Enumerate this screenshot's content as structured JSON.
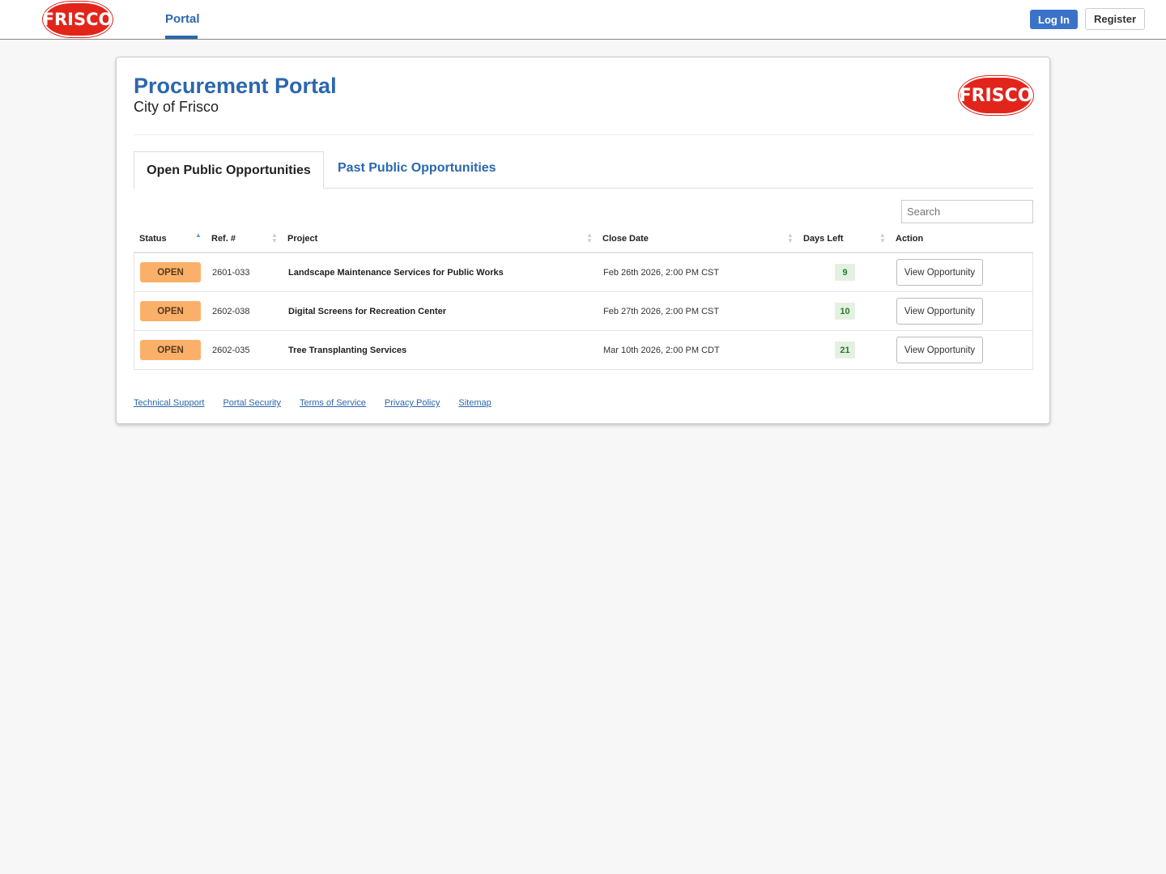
{
  "header": {
    "logo_text": "FRISCO",
    "nav": "Portal",
    "login": "Log In",
    "register": "Register"
  },
  "card": {
    "title": "Procurement Portal",
    "subtitle": "City of Frisco",
    "logo_text": "FRISCO"
  },
  "tabs": [
    {
      "label": "Open Public Opportunities",
      "active": true
    },
    {
      "label": "Past Public Opportunities",
      "active": false
    }
  ],
  "search": {
    "placeholder": "Search",
    "value": ""
  },
  "table": {
    "columns": [
      "Status",
      "Ref. #",
      "Project",
      "Close Date",
      "Days Left",
      "Action"
    ],
    "sorted_by": "Status",
    "sort_direction": "ascending",
    "rows": [
      {
        "status": "OPEN",
        "ref": "2601-033",
        "project": "Landscape Maintenance Services for Public Works",
        "close": "Feb 26th 2026, 2:00 PM CST",
        "days": "9",
        "action": "View Opportunity"
      },
      {
        "status": "OPEN",
        "ref": "2602-038",
        "project": "Digital Screens for Recreation Center",
        "close": "Feb 27th 2026, 2:00 PM CST",
        "days": "10",
        "action": "View Opportunity"
      },
      {
        "status": "OPEN",
        "ref": "2602-035",
        "project": "Tree Transplanting Services",
        "close": "Mar 10th 2026, 2:00 PM CDT",
        "days": "21",
        "action": "View Opportunity"
      }
    ]
  },
  "footer": [
    "Technical Support",
    "Portal Security",
    "Terms of Service",
    "Privacy Policy",
    "Sitemap"
  ],
  "colors": {
    "brand": "#2b67ac",
    "logo_red": "#e1251b",
    "open_badge": "#fbb06a",
    "days_badge": "#e3f1e1"
  }
}
